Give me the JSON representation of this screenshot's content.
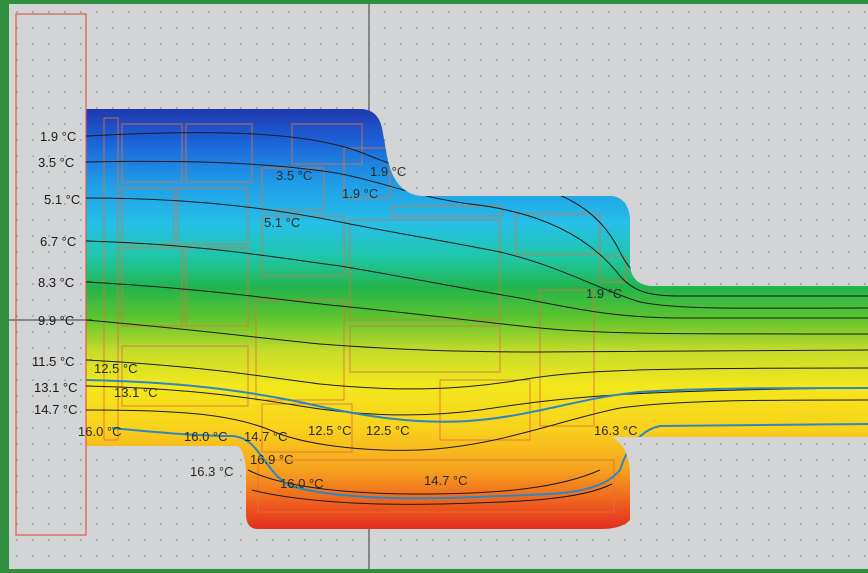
{
  "colors": {
    "frame_green": "#2f8f3f",
    "background": "#d3d4d6",
    "grid_dots": "#7f8387",
    "outline_red": "#e05a4a",
    "isotherm": "#1a1a1a",
    "highlight_isotherm": "#2e86c1"
  },
  "scale_labels": [
    {
      "id": "s1",
      "text": "1.9 °C"
    },
    {
      "id": "s2",
      "text": "3.5 °C"
    },
    {
      "id": "s3",
      "text": "5.1 °C"
    },
    {
      "id": "s4",
      "text": "6.7 °C"
    },
    {
      "id": "s5",
      "text": "8.3 °C"
    },
    {
      "id": "s6",
      "text": "9.9 °C"
    },
    {
      "id": "s7",
      "text": "11.5 °C"
    },
    {
      "id": "s8",
      "text": "13.1 °C"
    },
    {
      "id": "s9",
      "text": "14.7 °C"
    }
  ],
  "isotherm_labels": [
    {
      "id": "a1",
      "text": "16.0 °C"
    },
    {
      "id": "a2",
      "text": "12.5 °C"
    },
    {
      "id": "a3",
      "text": "13.1 °C"
    },
    {
      "id": "a4",
      "text": "16.0 °C"
    },
    {
      "id": "a5",
      "text": "14.7 °C"
    },
    {
      "id": "a6",
      "text": "12.5 °C"
    },
    {
      "id": "a7",
      "text": "12.5 °C"
    },
    {
      "id": "a8",
      "text": "16.3 °C"
    },
    {
      "id": "a9",
      "text": "16.9 °C"
    },
    {
      "id": "a10",
      "text": "16.0 °C"
    },
    {
      "id": "a11",
      "text": "14.7 °C"
    },
    {
      "id": "a12",
      "text": "16.3 °C"
    },
    {
      "id": "a13",
      "text": "3.5 °C"
    },
    {
      "id": "a14",
      "text": "1.9 °C"
    },
    {
      "id": "a15",
      "text": "1.9 °C"
    },
    {
      "id": "a16",
      "text": "5.1 °C"
    },
    {
      "id": "a17",
      "text": "1.9 °C"
    }
  ]
}
